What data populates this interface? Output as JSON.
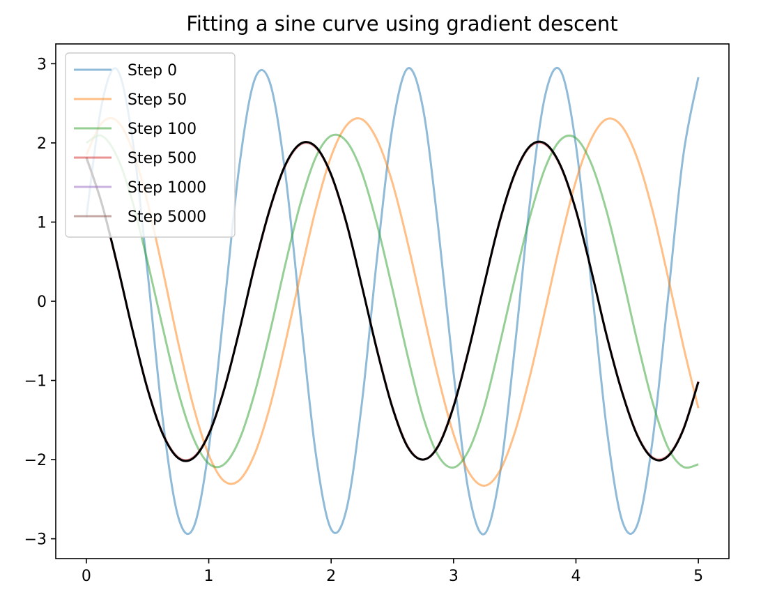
{
  "chart_data": {
    "type": "line",
    "title": "Fitting a sine curve using gradient descent",
    "xlabel": "",
    "ylabel": "",
    "xlim": [
      -0.25,
      5.25
    ],
    "ylim": [
      -3.25,
      3.25
    ],
    "x_ticks": [
      0,
      1,
      2,
      3,
      4,
      5
    ],
    "y_ticks": [
      -3,
      -2,
      -1,
      0,
      1,
      2,
      3
    ],
    "x_tick_labels": [
      "0",
      "1",
      "2",
      "3",
      "4",
      "5"
    ],
    "y_tick_labels": [
      "−3",
      "−2",
      "−1",
      "0",
      "1",
      "2",
      "3"
    ],
    "grid": false,
    "legend_position": "top-left",
    "legend_order": [
      0,
      1,
      2,
      3,
      4,
      5
    ],
    "x": [
      0,
      0.125,
      0.25,
      0.375,
      0.5,
      0.625,
      0.75,
      0.875,
      1.0,
      1.125,
      1.25,
      1.375,
      1.5,
      1.625,
      1.75,
      1.875,
      2.0,
      2.125,
      2.25,
      2.375,
      2.5,
      2.625,
      2.75,
      2.875,
      3.0,
      3.125,
      3.25,
      3.375,
      3.5,
      3.625,
      3.75,
      3.875,
      4.0,
      4.125,
      4.25,
      4.375,
      4.5,
      4.625,
      4.75,
      4.875,
      5.0
    ],
    "series": [
      {
        "name": "Step 0",
        "color": "#1f77b4",
        "opacity": 0.5,
        "values": [
          1.06,
          2.48,
          2.93,
          2.07,
          0.37,
          -1.5,
          -2.72,
          -2.86,
          -1.86,
          -0.1,
          1.71,
          2.8,
          2.76,
          1.62,
          -0.19,
          -1.93,
          -2.88,
          -2.63,
          -1.3,
          0.55,
          2.19,
          2.94,
          2.44,
          0.93,
          -0.9,
          -2.42,
          -2.94,
          -2.22,
          -0.59,
          1.26,
          2.61,
          2.91,
          1.97,
          0.23,
          -1.59,
          -2.76,
          -2.83,
          -1.77,
          0.01,
          1.82,
          2.83
        ]
      },
      {
        "name": "Step 50",
        "color": "#ff7f0e",
        "opacity": 0.5,
        "values": [
          1.85,
          2.25,
          2.28,
          1.92,
          1.25,
          0.39,
          -0.52,
          -1.33,
          -1.94,
          -2.27,
          -2.26,
          -1.93,
          -1.33,
          -0.53,
          0.34,
          1.17,
          1.83,
          2.22,
          2.3,
          2.04,
          1.5,
          0.74,
          -0.12,
          -0.96,
          -1.68,
          -2.16,
          -2.33,
          -2.15,
          -1.66,
          -0.94,
          -0.1,
          0.76,
          1.52,
          2.05,
          2.3,
          2.21,
          1.81,
          1.15,
          0.32,
          -0.55,
          -1.35
        ]
      },
      {
        "name": "Step 100",
        "color": "#2ca02c",
        "opacity": 0.5,
        "values": [
          2.0,
          2.09,
          1.83,
          1.27,
          0.5,
          -0.34,
          -1.14,
          -1.73,
          -2.05,
          -2.06,
          -1.75,
          -1.16,
          -0.39,
          0.46,
          1.24,
          1.82,
          2.09,
          2.02,
          1.63,
          0.97,
          0.16,
          -0.69,
          -1.45,
          -1.95,
          -2.1,
          -1.88,
          -1.34,
          -0.56,
          0.28,
          1.07,
          1.69,
          2.04,
          2.06,
          1.74,
          1.14,
          0.35,
          -0.5,
          -1.27,
          -1.84,
          -2.09,
          -2.06
        ]
      },
      {
        "name": "Step 500",
        "color": "#d62728",
        "opacity": 0.5,
        "values": [
          1.8,
          1.23,
          0.47,
          -0.35,
          -1.1,
          -1.67,
          -1.97,
          -1.97,
          -1.67,
          -1.11,
          -0.37,
          0.44,
          1.16,
          1.71,
          1.98,
          1.94,
          1.59,
          0.98,
          0.2,
          -0.61,
          -1.33,
          -1.83,
          -2.0,
          -1.82,
          -1.32,
          -0.6,
          0.21,
          0.99,
          1.6,
          1.95,
          1.98,
          1.7,
          1.14,
          0.39,
          -0.42,
          -1.13,
          -1.68,
          -1.97,
          -1.95,
          -1.62,
          -1.01
        ]
      },
      {
        "name": "Step 1000",
        "color": "#9467bd",
        "opacity": 0.5,
        "values": [
          1.82,
          1.24,
          0.48,
          -0.35,
          -1.11,
          -1.68,
          -1.98,
          -1.98,
          -1.68,
          -1.12,
          -0.37,
          0.45,
          1.17,
          1.72,
          1.99,
          1.95,
          1.6,
          0.99,
          0.2,
          -0.62,
          -1.34,
          -1.84,
          -2.0,
          -1.83,
          -1.33,
          -0.61,
          0.21,
          1.0,
          1.61,
          1.96,
          1.99,
          1.71,
          1.15,
          0.39,
          -0.43,
          -1.14,
          -1.69,
          -1.98,
          -1.96,
          -1.63,
          -1.02
        ]
      },
      {
        "name": "Step 5000",
        "color": "#8c564b",
        "opacity": 0.5,
        "values": [
          1.82,
          1.24,
          0.48,
          -0.35,
          -1.11,
          -1.68,
          -1.98,
          -1.98,
          -1.68,
          -1.12,
          -0.37,
          0.45,
          1.17,
          1.72,
          1.99,
          1.95,
          1.6,
          0.99,
          0.2,
          -0.62,
          -1.34,
          -1.84,
          -2.0,
          -1.83,
          -1.33,
          -0.61,
          0.21,
          1.0,
          1.61,
          1.96,
          1.99,
          1.71,
          1.15,
          0.39,
          -0.43,
          -1.14,
          -1.69,
          -1.98,
          -1.96,
          -1.63,
          -1.02
        ]
      },
      {
        "color": "#000000",
        "opacity": 1.0,
        "values": [
          1.82,
          1.24,
          0.48,
          -0.35,
          -1.11,
          -1.68,
          -1.98,
          -1.98,
          -1.68,
          -1.12,
          -0.37,
          0.45,
          1.17,
          1.72,
          1.99,
          1.95,
          1.6,
          0.99,
          0.2,
          -0.62,
          -1.34,
          -1.84,
          -2.0,
          -1.83,
          -1.33,
          -0.61,
          0.21,
          1.0,
          1.61,
          1.96,
          1.99,
          1.71,
          1.15,
          0.39,
          -0.43,
          -1.14,
          -1.69,
          -1.98,
          -1.96,
          -1.63,
          -1.02
        ]
      }
    ]
  }
}
